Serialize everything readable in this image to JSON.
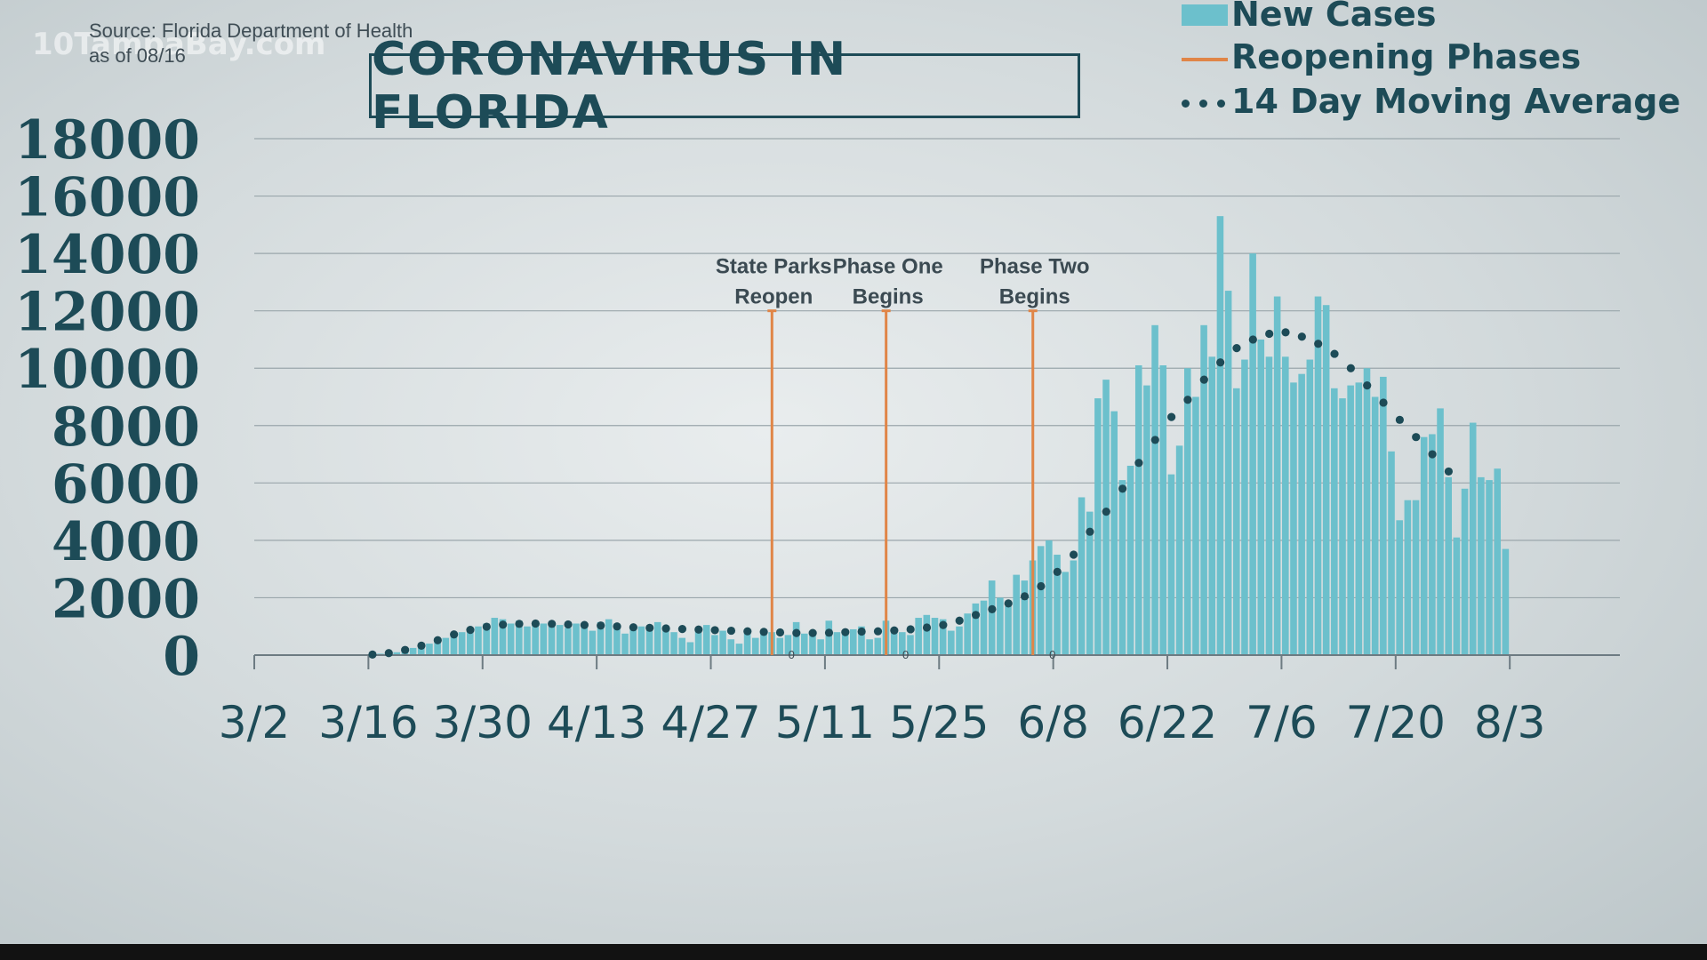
{
  "watermark": "10TampaBay.com",
  "source": {
    "line1": "Source: Florida Department of Health",
    "line2": "as of 08/16"
  },
  "title": "CORONAVIRUS IN FLORIDA",
  "legend": {
    "bars": "New Cases",
    "phases": "Reopening Phases",
    "average": "14 Day Moving Average"
  },
  "colors": {
    "bars": "#6cc0cc",
    "phases": "#e08547",
    "average": "#1d4b57",
    "text": "#1d4b57",
    "grid": "#9aa6ab"
  },
  "chart_data": {
    "type": "bar",
    "title": "CORONAVIRUS IN FLORIDA",
    "xlabel": "",
    "ylabel": "",
    "ylim": [
      0,
      18000
    ],
    "yticks": [
      "0",
      "2000",
      "4000",
      "6000",
      "8000",
      "10000",
      "12000",
      "14000",
      "16000",
      "18000"
    ],
    "xticks": [
      "3/2",
      "3/16",
      "3/30",
      "4/13",
      "4/27",
      "5/11",
      "5/25",
      "6/8",
      "6/22",
      "7/6",
      "7/20",
      "8/3"
    ],
    "x_start": "3/2",
    "grid": true,
    "legend_position": "top-right",
    "series": [
      {
        "name": "New Cases",
        "type": "bar",
        "values": [
          0,
          0,
          0,
          0,
          0,
          0,
          0,
          0,
          0,
          0,
          0,
          0,
          0,
          0,
          30,
          50,
          60,
          100,
          150,
          250,
          300,
          400,
          500,
          600,
          700,
          800,
          900,
          1000,
          1100,
          1300,
          1250,
          1100,
          1200,
          1000,
          1050,
          1100,
          1150,
          1050,
          950,
          1100,
          1000,
          850,
          1150,
          1250,
          1100,
          750,
          900,
          1000,
          950,
          1150,
          1000,
          800,
          600,
          450,
          900,
          1050,
          700,
          850,
          550,
          400,
          850,
          600,
          750,
          800,
          600,
          700,
          1150,
          750,
          700,
          550,
          1200,
          800,
          750,
          900,
          1000,
          550,
          600,
          1200,
          900,
          800,
          700,
          1300,
          1400,
          1300,
          1250,
          850,
          1000,
          1450,
          1800,
          1900,
          2600,
          2000,
          1700,
          2800,
          2600,
          3300,
          3800,
          4000,
          3500,
          2900,
          3300,
          5500,
          5000,
          8950,
          9600,
          8500,
          6100,
          6600,
          10100,
          9400,
          11500,
          10100,
          6300,
          7300,
          10000,
          9000,
          11500,
          10400,
          15300,
          12700,
          9300,
          10300,
          14000,
          11000,
          10400,
          12500,
          10400,
          9500,
          9800,
          10300,
          12500,
          12200,
          9300,
          8950,
          9400,
          9500,
          10000,
          9000,
          9700,
          7100,
          4700,
          5400,
          5400,
          7600,
          7700,
          8600,
          6200,
          4100,
          5800,
          8100,
          6200,
          6100,
          6500,
          3700
        ]
      },
      {
        "name": "14 Day Moving Average",
        "type": "line",
        "style": "dotted",
        "values": [
          null,
          null,
          null,
          null,
          null,
          null,
          null,
          null,
          null,
          null,
          null,
          null,
          null,
          null,
          20,
          40,
          70,
          120,
          180,
          250,
          330,
          420,
          520,
          620,
          720,
          810,
          880,
          940,
          990,
          1030,
          1060,
          1080,
          1090,
          1100,
          1100,
          1100,
          1090,
          1080,
          1070,
          1060,
          1050,
          1040,
          1030,
          1020,
          1000,
          990,
          970,
          960,
          950,
          940,
          930,
          920,
          910,
          900,
          890,
          880,
          870,
          860,
          850,
          840,
          830,
          820,
          810,
          800,
          790,
          780,
          770,
          770,
          770,
          770,
          780,
          790,
          800,
          810,
          820,
          820,
          830,
          840,
          860,
          880,
          900,
          930,
          960,
          1000,
          1050,
          1100,
          1200,
          1300,
          1400,
          1500,
          1600,
          1700,
          1800,
          1900,
          2050,
          2200,
          2400,
          2600,
          2900,
          3200,
          3500,
          3900,
          4300,
          4700,
          5000,
          5400,
          5800,
          6200,
          6700,
          7100,
          7500,
          7900,
          8300,
          8600,
          8900,
          9200,
          9600,
          9900,
          10200,
          10500,
          10700,
          10900,
          11000,
          11100,
          11200,
          11250,
          11250,
          11200,
          11100,
          11000,
          10850,
          10700,
          10500,
          10250,
          10000,
          9700,
          9400,
          9100,
          8800,
          8500,
          8200,
          7900,
          7600,
          7300,
          7000,
          6700,
          6400,
          6100
        ]
      }
    ],
    "annotations": [
      {
        "label_line1": "State Parks",
        "label_line2": "Reopen",
        "date": "5/4",
        "marker_value": "0"
      },
      {
        "label_line1": "Phase One",
        "label_line2": "Begins",
        "date": "5/18",
        "marker_value": "0"
      },
      {
        "label_line1": "Phase Two",
        "label_line2": "Begins",
        "date": "6/5",
        "marker_value": "0"
      }
    ]
  }
}
